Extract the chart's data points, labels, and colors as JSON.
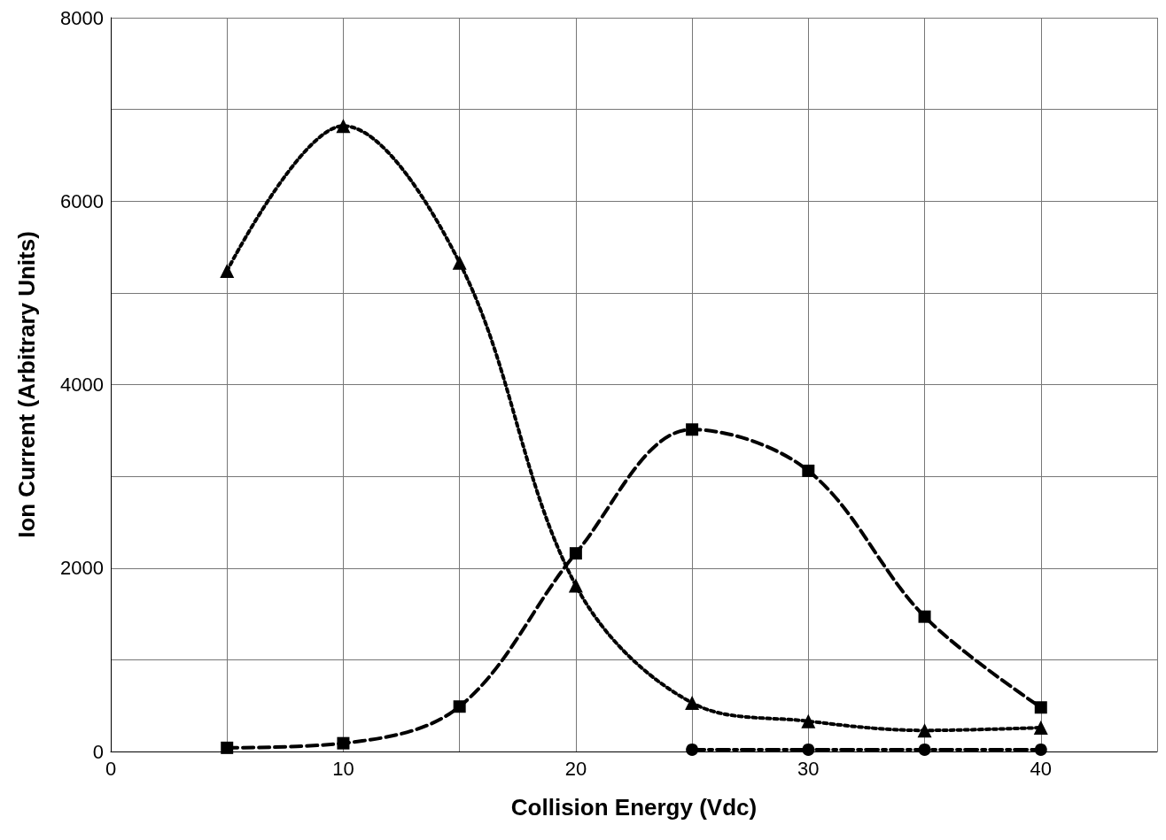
{
  "chart_data": {
    "type": "line",
    "xlabel": "Collision Energy (Vdc)",
    "ylabel": "Ion Current (Arbitrary Units)",
    "x": [
      5,
      10,
      15,
      20,
      25,
      30,
      35,
      40
    ],
    "series": [
      {
        "color": "#000000",
        "marker": "triangle",
        "line_style": "dotted",
        "values": [
          5240,
          6820,
          5330,
          1810,
          530,
          330,
          230,
          260
        ]
      },
      {
        "color": "#000000",
        "marker": "square",
        "line_style": "dashed",
        "values": [
          40,
          90,
          490,
          2160,
          3510,
          3060,
          1470,
          480
        ]
      },
      {
        "color": "#000000",
        "marker": "circle",
        "line_style": "dashdot",
        "values": [
          null,
          null,
          null,
          null,
          20,
          20,
          20,
          20
        ]
      }
    ],
    "xlim": [
      0,
      45
    ],
    "xticks": [
      0,
      {
        "value": 5,
        "label": null
      },
      10,
      {
        "value": 15,
        "label": null
      },
      20,
      {
        "value": 25,
        "label": null
      },
      30,
      {
        "value": 35,
        "label": null
      },
      40,
      {
        "value": 45,
        "label": null
      }
    ],
    "ylim": [
      0,
      8000
    ],
    "yticks": [
      0,
      {
        "value": 1000,
        "label": null
      },
      2000,
      {
        "value": 3000,
        "label": null
      },
      4000,
      {
        "value": 5000,
        "label": null
      },
      6000,
      {
        "value": 7000,
        "label": null
      },
      8000
    ],
    "grid": true
  }
}
